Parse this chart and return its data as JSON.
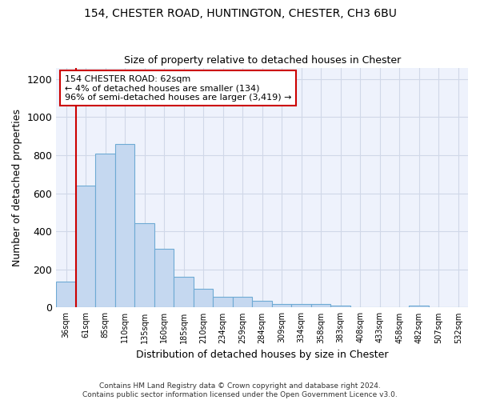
{
  "title1": "154, CHESTER ROAD, HUNTINGTON, CHESTER, CH3 6BU",
  "title2": "Size of property relative to detached houses in Chester",
  "xlabel": "Distribution of detached houses by size in Chester",
  "ylabel": "Number of detached properties",
  "categories": [
    "36sqm",
    "61sqm",
    "85sqm",
    "110sqm",
    "135sqm",
    "160sqm",
    "185sqm",
    "210sqm",
    "234sqm",
    "259sqm",
    "284sqm",
    "309sqm",
    "334sqm",
    "358sqm",
    "383sqm",
    "408sqm",
    "433sqm",
    "458sqm",
    "482sqm",
    "507sqm",
    "532sqm"
  ],
  "values": [
    135,
    640,
    810,
    860,
    445,
    310,
    160,
    97,
    55,
    55,
    35,
    18,
    20,
    18,
    10,
    2,
    0,
    0,
    10,
    0,
    0
  ],
  "bar_color": "#c5d8f0",
  "bar_edgecolor": "#6eaad4",
  "annotation_text": "154 CHESTER ROAD: 62sqm\n← 4% of detached houses are smaller (134)\n96% of semi-detached houses are larger (3,419) →",
  "annotation_box_color": "#ffffff",
  "annotation_box_edgecolor": "#cc0000",
  "vline_color": "#cc0000",
  "vline_x": 0.5,
  "ylim": [
    0,
    1260
  ],
  "yticks": [
    0,
    200,
    400,
    600,
    800,
    1000,
    1200
  ],
  "grid_color": "#d0d8e8",
  "bg_color": "#eef2fc",
  "footer": "Contains HM Land Registry data © Crown copyright and database right 2024.\nContains public sector information licensed under the Open Government Licence v3.0."
}
